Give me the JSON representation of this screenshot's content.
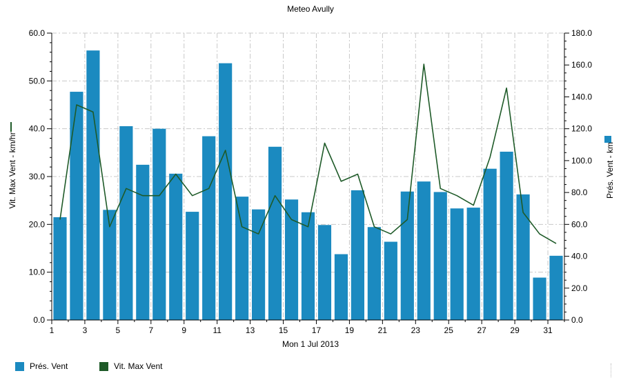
{
  "colors": {
    "bar": "#1b8ac0",
    "line": "#1e5a28",
    "grid": "#c8c8c8"
  },
  "chart_data": {
    "type": "bar",
    "title": "Meteo  Avully",
    "xlabel": "Mon 1 Jul 2013",
    "ylabel_left": "Vit. Max Vent - km/hr",
    "ylabel_right": "Prés. Vent - km",
    "x": [
      1,
      2,
      3,
      4,
      5,
      6,
      7,
      8,
      9,
      10,
      11,
      12,
      13,
      14,
      15,
      16,
      17,
      18,
      19,
      20,
      21,
      22,
      23,
      24,
      25,
      26,
      27,
      28,
      29,
      30,
      31
    ],
    "x_ticks": [
      "1",
      "3",
      "5",
      "7",
      "9",
      "11",
      "13",
      "15",
      "17",
      "19",
      "21",
      "23",
      "25",
      "27",
      "29",
      "31"
    ],
    "xlim": [
      1,
      32
    ],
    "ylim_left": [
      0,
      60
    ],
    "ylim_right": [
      0,
      180
    ],
    "yticks_left": [
      "0.0",
      "10.0",
      "20.0",
      "30.0",
      "40.0",
      "50.0",
      "60.0"
    ],
    "yticks_right": [
      "0.0",
      "20.0",
      "40.0",
      "60.0",
      "80.0",
      "100.0",
      "120.0",
      "140.0",
      "160.0",
      "180.0"
    ],
    "grid": true,
    "legend_position": "bottom-left",
    "series": [
      {
        "name": "Prés. Vent",
        "type": "bar",
        "axis": "right",
        "values": [
          64.5,
          143.2,
          169.1,
          69.1,
          121.6,
          97.4,
          120.0,
          91.8,
          67.9,
          115.3,
          161.1,
          77.4,
          69.4,
          108.7,
          75.6,
          67.6,
          59.6,
          41.3,
          81.4,
          58.3,
          49.1,
          80.6,
          86.9,
          80.3,
          70.0,
          70.5,
          94.9,
          105.6,
          78.8,
          26.6,
          40.3
        ]
      },
      {
        "name": "Vit. Max Vent",
        "type": "line",
        "axis": "left",
        "values": [
          21.0,
          45.0,
          43.5,
          19.5,
          27.5,
          26.0,
          26.0,
          30.5,
          26.0,
          27.5,
          35.5,
          19.5,
          18.0,
          26.0,
          21.0,
          19.5,
          37.0,
          29.0,
          30.5,
          19.5,
          18.0,
          21.0,
          53.5,
          27.5,
          26.0,
          24.0,
          34.0,
          48.5,
          22.5,
          18.0,
          16.0
        ]
      }
    ]
  }
}
